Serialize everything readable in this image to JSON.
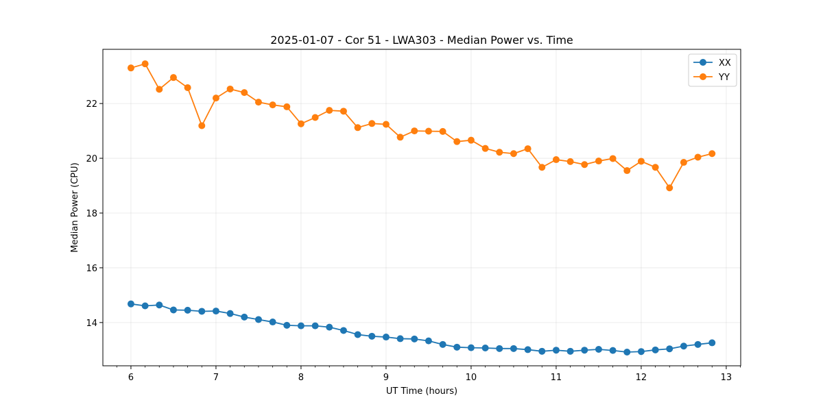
{
  "chart_data": {
    "type": "line",
    "title": "2025-01-07 - Cor 51 - LWA303 - Median Power vs. Time",
    "xlabel": "UT Time (hours)",
    "ylabel": "Median Power (CPU)",
    "xlim": [
      5.67,
      13.17
    ],
    "ylim": [
      12.42,
      23.98
    ],
    "xticks": [
      6,
      7,
      8,
      9,
      10,
      11,
      12,
      13
    ],
    "yticks": [
      14,
      16,
      18,
      20,
      22
    ],
    "grid": true,
    "legend_position": "top-right",
    "x": [
      6.0,
      6.1667,
      6.3333,
      6.5,
      6.6667,
      6.8333,
      7.0,
      7.1667,
      7.3333,
      7.5,
      7.6667,
      7.8333,
      8.0,
      8.1667,
      8.3333,
      8.5,
      8.6667,
      8.8333,
      9.0,
      9.1667,
      9.3333,
      9.5,
      9.6667,
      9.8333,
      10.0,
      10.1667,
      10.3333,
      10.5,
      10.6667,
      10.8333,
      11.0,
      11.1667,
      11.3333,
      11.5,
      11.6667,
      11.8333,
      12.0,
      12.1667,
      12.3333,
      12.5,
      12.6667,
      12.8333
    ],
    "series": [
      {
        "name": "XX",
        "color": "#1f77b4",
        "values": [
          14.68,
          14.61,
          14.64,
          14.46,
          14.45,
          14.41,
          14.42,
          14.33,
          14.2,
          14.11,
          14.02,
          13.9,
          13.88,
          13.88,
          13.83,
          13.71,
          13.56,
          13.5,
          13.47,
          13.41,
          13.4,
          13.33,
          13.2,
          13.1,
          13.08,
          13.07,
          13.05,
          13.05,
          13.01,
          12.95,
          12.99,
          12.95,
          12.99,
          13.02,
          12.98,
          12.92,
          12.94,
          13.0,
          13.04,
          13.14,
          13.2,
          13.26
        ]
      },
      {
        "name": "YY",
        "color": "#ff7f0e",
        "values": [
          23.3,
          23.45,
          22.52,
          22.95,
          22.58,
          21.19,
          22.2,
          22.53,
          22.4,
          22.05,
          21.95,
          21.88,
          21.26,
          21.49,
          21.75,
          21.72,
          21.12,
          21.27,
          21.24,
          20.77,
          21.0,
          20.99,
          20.98,
          20.61,
          20.66,
          20.36,
          20.22,
          20.17,
          20.35,
          19.67,
          19.95,
          19.88,
          19.77,
          19.9,
          19.99,
          19.55,
          19.89,
          19.67,
          18.92,
          19.85,
          20.04,
          20.17
        ]
      }
    ]
  }
}
